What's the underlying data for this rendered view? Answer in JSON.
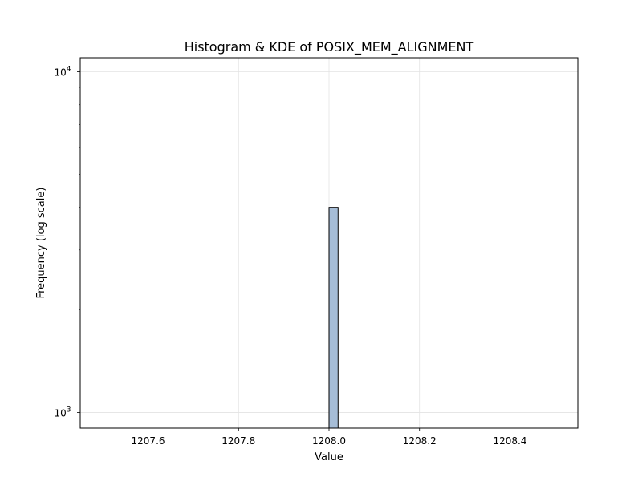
{
  "chart_data": {
    "type": "bar",
    "title": "Histogram & KDE of POSIX_MEM_ALIGNMENT",
    "xlabel": "Value",
    "ylabel": "Frequency (log scale)",
    "xlim": [
      1207.45,
      1208.55
    ],
    "ylim": [
      900,
      11000
    ],
    "yscale": "log",
    "grid": true,
    "x_ticks": [
      1207.6,
      1207.8,
      1208.0,
      1208.2,
      1208.4
    ],
    "x_tick_labels": [
      "1207.6",
      "1207.8",
      "1208.0",
      "1208.2",
      "1208.4"
    ],
    "y_ticks": [
      {
        "value": 1000,
        "base": "10",
        "exp": "3"
      },
      {
        "value": 10000,
        "base": "10",
        "exp": "4"
      }
    ],
    "bins": [
      {
        "x0": 1208.0,
        "x1": 1208.02,
        "count": 4000
      }
    ],
    "bar_fill": "#a6bdd7",
    "bar_edge": "#000000"
  }
}
